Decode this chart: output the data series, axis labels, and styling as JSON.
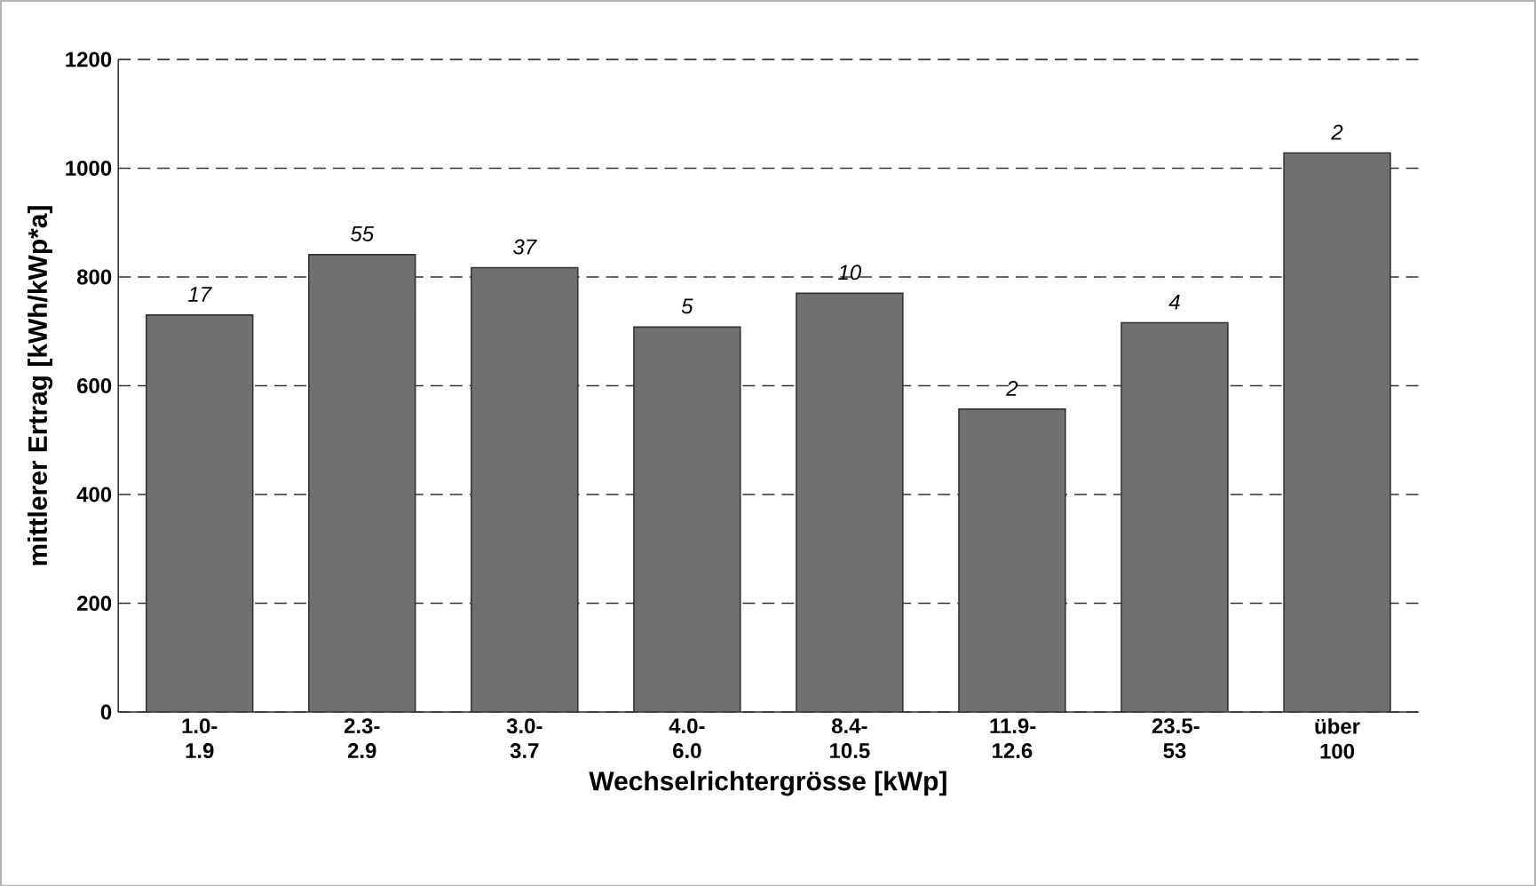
{
  "chart_data": {
    "type": "bar",
    "xlabel": "Wechselrichtergrösse [kWp]",
    "ylabel": "mittlerer Ertrag [kWh/kWp*a]",
    "categories": [
      "1.0-1.9",
      "2.3-2.9",
      "3.0-3.7",
      "4.0-6.0",
      "8.4-10.5",
      "11.9-12.6",
      "23.5-53",
      "über 100"
    ],
    "values": [
      730,
      841,
      817,
      708,
      770,
      557,
      716,
      1028
    ],
    "color": "#707070",
    "ylim": [
      0,
      1200
    ],
    "yticks": [
      0,
      200,
      400,
      600,
      800,
      1000,
      1200
    ],
    "grid": "y",
    "annotations": [
      {
        "text": "17",
        "x": "1.0-1.9",
        "y": 730
      },
      {
        "text": "55",
        "x": "2.3-2.9",
        "y": 841
      },
      {
        "text": "37",
        "x": "3.0-3.7",
        "y": 817
      },
      {
        "text": "5",
        "x": "4.0-6.0",
        "y": 708
      },
      {
        "text": "10",
        "x": "8.4-10.5",
        "y": 770
      },
      {
        "text": "2",
        "x": "11.9-12.6",
        "y": 557
      },
      {
        "text": "4",
        "x": "23.5-53",
        "y": 716
      },
      {
        "text": "2",
        "x": "über 100",
        "y": 1028
      }
    ]
  }
}
